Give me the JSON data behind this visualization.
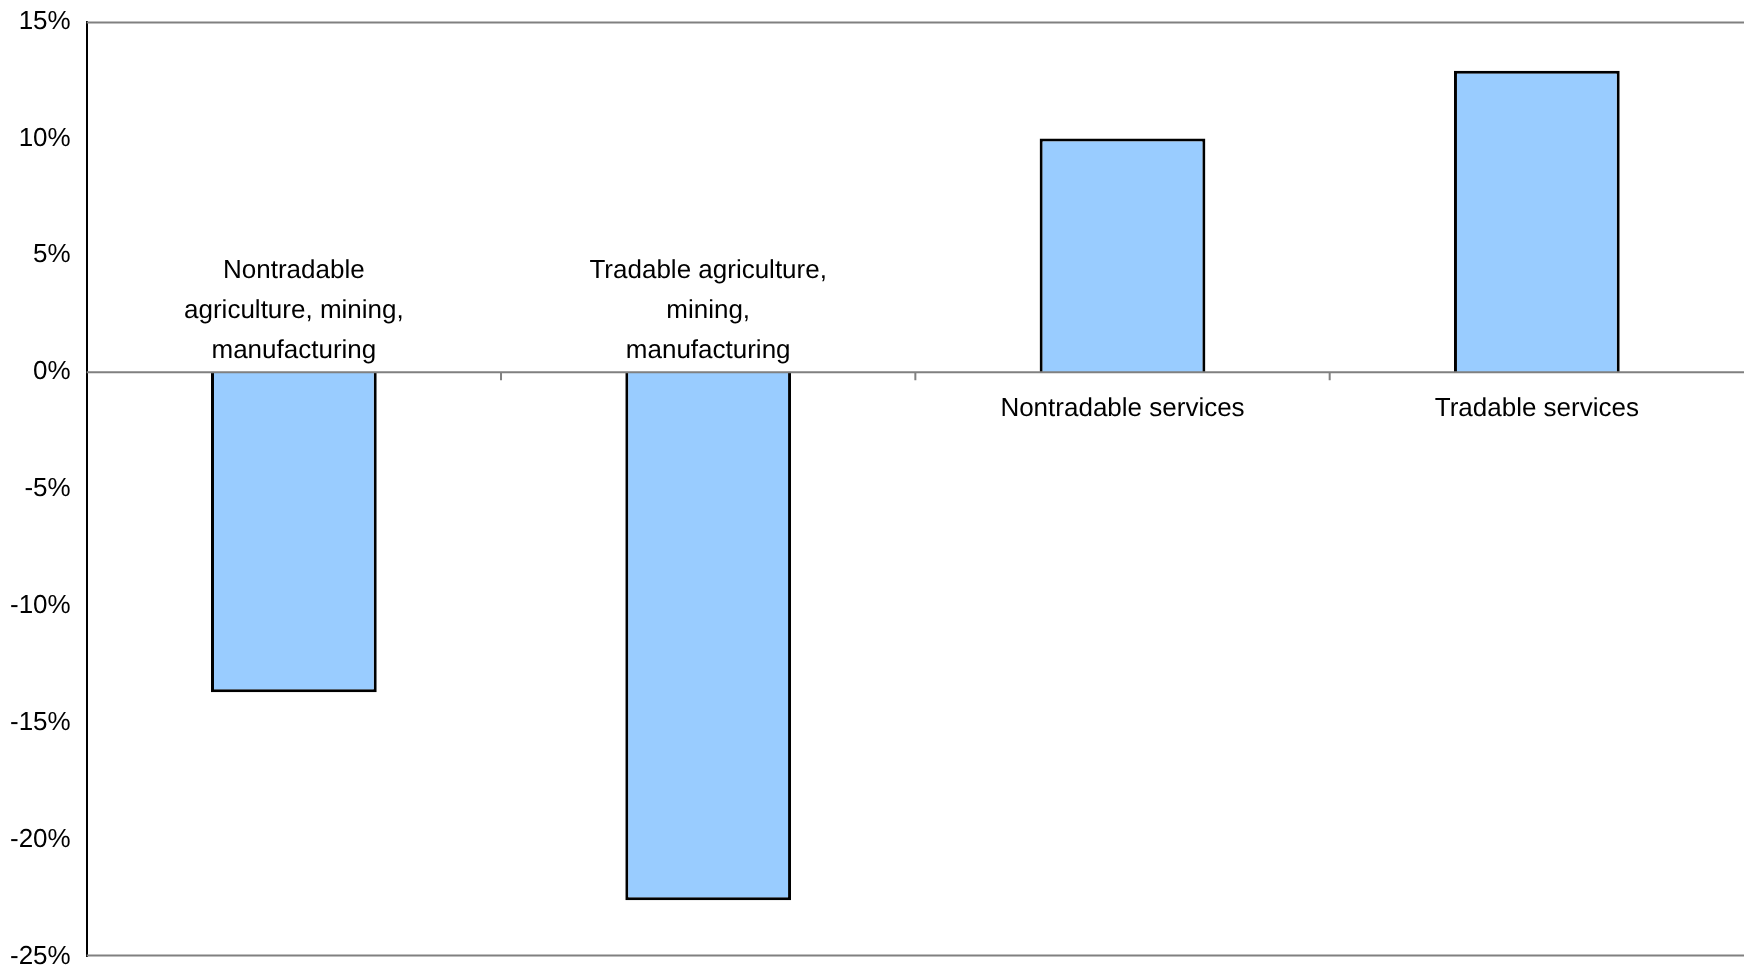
{
  "chart_data": {
    "type": "bar",
    "categories": [
      "Nontradable agriculture, mining, manufacturing",
      "Tradable agriculture, mining, manufacturing",
      "Nontradable services",
      "Tradable services"
    ],
    "values": [
      -13.7,
      -22.6,
      10.0,
      12.9
    ],
    "color": "#99ccff",
    "ylim": [
      -25,
      15
    ],
    "yticks": [
      {
        "value": -25,
        "label": "-25%"
      },
      {
        "value": -20,
        "label": "-20%"
      },
      {
        "value": -15,
        "label": "-15%"
      },
      {
        "value": -10,
        "label": "-10%"
      },
      {
        "value": -5,
        "label": "-5%"
      },
      {
        "value": 0,
        "label": "0%"
      },
      {
        "value": 5,
        "label": "5%"
      },
      {
        "value": 10,
        "label": "10%"
      },
      {
        "value": 15,
        "label": "15%"
      }
    ],
    "grid": false,
    "legend": false
  }
}
